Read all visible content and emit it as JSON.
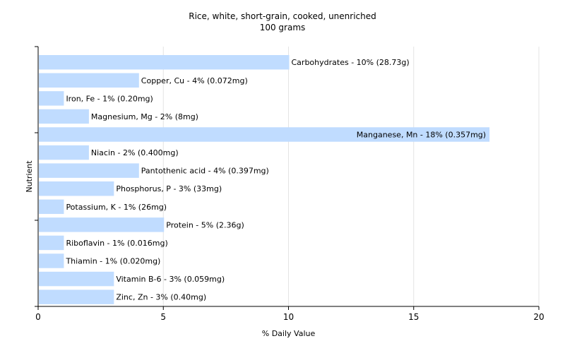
{
  "chart_data": {
    "type": "bar",
    "orientation": "horizontal",
    "title": "Rice, white, short-grain, cooked, unenriched",
    "subtitle": "100 grams",
    "xlabel": "% Daily Value",
    "ylabel": "Nutrient",
    "xlim": [
      0,
      20
    ],
    "xticks": [
      "0",
      "5",
      "10",
      "15",
      "20"
    ],
    "grid": "vertical",
    "bar_color": "#c0dcff",
    "categories": [
      "Carbohydrates",
      "Copper, Cu",
      "Iron, Fe",
      "Magnesium, Mg",
      "Manganese, Mn",
      "Niacin",
      "Pantothenic acid",
      "Phosphorus, P",
      "Potassium, K",
      "Protein",
      "Riboflavin",
      "Thiamin",
      "Vitamin B-6",
      "Zinc, Zn"
    ],
    "values": [
      10,
      4,
      1,
      2,
      18,
      2,
      4,
      3,
      1,
      5,
      1,
      1,
      3,
      3
    ],
    "labels": [
      "Carbohydrates - 10% (28.73g)",
      "Copper, Cu - 4% (0.072mg)",
      "Iron, Fe - 1% (0.20mg)",
      "Magnesium, Mg - 2% (8mg)",
      "Manganese, Mn - 18% (0.357mg)",
      "Niacin - 2% (0.400mg)",
      "Pantothenic acid - 4% (0.397mg)",
      "Phosphorus, P - 3% (33mg)",
      "Potassium, K - 1% (26mg)",
      "Protein - 5% (2.36g)",
      "Riboflavin - 1% (0.016mg)",
      "Thiamin - 1% (0.020mg)",
      "Vitamin B-6 - 3% (0.059mg)",
      "Zinc, Zn - 3% (0.40mg)"
    ]
  }
}
